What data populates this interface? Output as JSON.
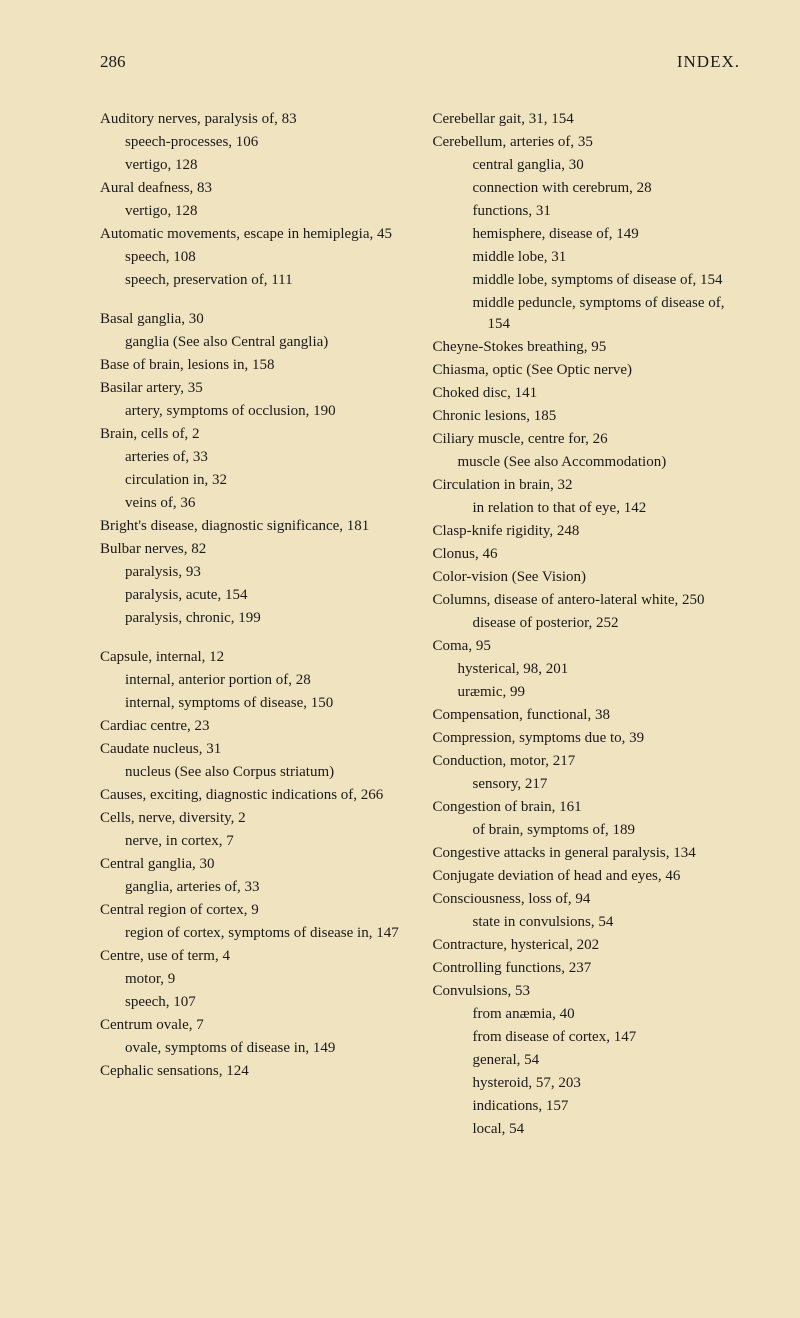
{
  "page_number": "286",
  "title": "INDEX.",
  "left_column": [
    {
      "text": "Auditory nerves, paralysis of, 83",
      "cls": "entry"
    },
    {
      "text": "speech-processes, 106",
      "cls": "entry indent1"
    },
    {
      "text": "vertigo, 128",
      "cls": "entry indent1"
    },
    {
      "text": "Aural deafness, 83",
      "cls": "entry"
    },
    {
      "text": "vertigo, 128",
      "cls": "entry indent1"
    },
    {
      "text": "Automatic movements, escape in hemiplegia, 45",
      "cls": "entry indent1",
      "style": "padding-left:55px;text-indent:-55px;"
    },
    {
      "text": "speech, 108",
      "cls": "entry indent1"
    },
    {
      "text": "speech, preservation of, 111",
      "cls": "entry indent1"
    },
    {
      "text": "Basal ganglia, 30",
      "cls": "entry gap"
    },
    {
      "text": "ganglia (See also Central ganglia)",
      "cls": "entry indent1"
    },
    {
      "text": "Base of brain, lesions in, 158",
      "cls": "entry"
    },
    {
      "text": "Basilar artery, 35",
      "cls": "entry"
    },
    {
      "text": "artery, symptoms of occlusion, 190",
      "cls": "entry indent1"
    },
    {
      "text": "Brain, cells of, 2",
      "cls": "entry"
    },
    {
      "text": "arteries of, 33",
      "cls": "entry indent1"
    },
    {
      "text": "circulation in, 32",
      "cls": "entry indent1"
    },
    {
      "text": "veins of, 36",
      "cls": "entry indent1"
    },
    {
      "text": "Bright's disease, diagnostic significance, 181",
      "cls": "entry",
      "style": "padding-left:25px;text-indent:-25px;"
    },
    {
      "text": "Bulbar nerves, 82",
      "cls": "entry"
    },
    {
      "text": "paralysis, 93",
      "cls": "entry indent1"
    },
    {
      "text": "paralysis, acute, 154",
      "cls": "entry indent1"
    },
    {
      "text": "paralysis, chronic, 199",
      "cls": "entry indent1"
    },
    {
      "text": "Capsule, internal, 12",
      "cls": "entry gap"
    },
    {
      "text": "internal, anterior portion of, 28",
      "cls": "entry indent1"
    },
    {
      "text": "internal, symptoms of disease, 150",
      "cls": "entry indent1"
    },
    {
      "text": "Cardiac centre, 23",
      "cls": "entry"
    },
    {
      "text": "Caudate nucleus, 31",
      "cls": "entry"
    },
    {
      "text": "nucleus (See also Corpus striatum)",
      "cls": "entry indent1"
    },
    {
      "text": "Causes, exciting, diagnostic indications of, 266",
      "cls": "entry",
      "style": "padding-left:25px;text-indent:-25px;"
    },
    {
      "text": "Cells, nerve, diversity, 2",
      "cls": "entry"
    },
    {
      "text": "nerve, in cortex, 7",
      "cls": "entry indent1"
    },
    {
      "text": "Central ganglia, 30",
      "cls": "entry"
    },
    {
      "text": "ganglia, arteries of, 33",
      "cls": "entry indent1"
    },
    {
      "text": "Central region of cortex, 9",
      "cls": "entry"
    },
    {
      "text": "region of cortex, symptoms of disease in, 147",
      "cls": "entry indent1"
    },
    {
      "text": "Centre, use of term, 4",
      "cls": "entry"
    },
    {
      "text": "motor, 9",
      "cls": "entry indent1"
    },
    {
      "text": "speech, 107",
      "cls": "entry indent1"
    },
    {
      "text": "Centrum ovale, 7",
      "cls": "entry"
    },
    {
      "text": "ovale, symptoms of disease in, 149",
      "cls": "entry indent1"
    },
    {
      "text": "Cephalic sensations, 124",
      "cls": "entry"
    }
  ],
  "right_column": [
    {
      "text": "Cerebellar gait, 31, 154",
      "cls": "entry"
    },
    {
      "text": "Cerebellum, arteries of, 35",
      "cls": "entry"
    },
    {
      "text": "central ganglia, 30",
      "cls": "entry indent2"
    },
    {
      "text": "connection with cerebrum, 28",
      "cls": "entry indent2"
    },
    {
      "text": "functions, 31",
      "cls": "entry indent2"
    },
    {
      "text": "hemisphere, disease of, 149",
      "cls": "entry indent2"
    },
    {
      "text": "middle lobe, 31",
      "cls": "entry indent2"
    },
    {
      "text": "middle lobe, symptoms of disease of, 154",
      "cls": "entry indent2"
    },
    {
      "text": "middle peduncle, symptoms of disease of, 154",
      "cls": "entry indent2"
    },
    {
      "text": "Cheyne-Stokes breathing, 95",
      "cls": "entry"
    },
    {
      "text": "Chiasma, optic (See Optic nerve)",
      "cls": "entry"
    },
    {
      "text": "Choked disc, 141",
      "cls": "entry"
    },
    {
      "text": "Chronic lesions, 185",
      "cls": "entry"
    },
    {
      "text": "Ciliary muscle, centre for, 26",
      "cls": "entry"
    },
    {
      "text": "muscle (See also Accommodation)",
      "cls": "entry indent1"
    },
    {
      "text": "Circulation in brain, 32",
      "cls": "entry"
    },
    {
      "text": "in relation to that of eye, 142",
      "cls": "entry indent2"
    },
    {
      "text": "Clasp-knife rigidity, 248",
      "cls": "entry"
    },
    {
      "text": "Clonus, 46",
      "cls": "entry"
    },
    {
      "text": "Color-vision (See Vision)",
      "cls": "entry"
    },
    {
      "text": "Columns, disease of antero-lateral white, 250",
      "cls": "entry indent1",
      "style": "padding-left:70px;text-indent:-70px;"
    },
    {
      "text": "disease of posterior, 252",
      "cls": "entry indent2"
    },
    {
      "text": "Coma, 95",
      "cls": "entry"
    },
    {
      "text": "hysterical, 98, 201",
      "cls": "entry indent1"
    },
    {
      "text": "uræmic, 99",
      "cls": "entry indent1"
    },
    {
      "text": "Compensation, functional, 38",
      "cls": "entry"
    },
    {
      "text": "Compression, symptoms due to, 39",
      "cls": "entry"
    },
    {
      "text": "Conduction, motor, 217",
      "cls": "entry"
    },
    {
      "text": "sensory, 217",
      "cls": "entry indent2"
    },
    {
      "text": "Congestion of brain, 161",
      "cls": "entry"
    },
    {
      "text": "of brain, symptoms of, 189",
      "cls": "entry indent2"
    },
    {
      "text": "Congestive attacks in general paralysis, 134",
      "cls": "entry",
      "style": "padding-left:25px;text-indent:-25px;"
    },
    {
      "text": "Conjugate deviation of head and eyes, 46",
      "cls": "entry",
      "style": "padding-left:25px;text-indent:-25px;"
    },
    {
      "text": "Consciousness, loss of, 94",
      "cls": "entry"
    },
    {
      "text": "state in convulsions, 54",
      "cls": "entry indent2"
    },
    {
      "text": "Contracture, hysterical, 202",
      "cls": "entry"
    },
    {
      "text": "Controlling functions, 237",
      "cls": "entry"
    },
    {
      "text": "Convulsions, 53",
      "cls": "entry"
    },
    {
      "text": "from anæmia, 40",
      "cls": "entry indent2"
    },
    {
      "text": "from disease of cortex, 147",
      "cls": "entry indent2"
    },
    {
      "text": "general, 54",
      "cls": "entry indent2"
    },
    {
      "text": "hysteroid, 57, 203",
      "cls": "entry indent2"
    },
    {
      "text": "indications, 157",
      "cls": "entry indent2"
    },
    {
      "text": "local, 54",
      "cls": "entry indent2"
    }
  ]
}
